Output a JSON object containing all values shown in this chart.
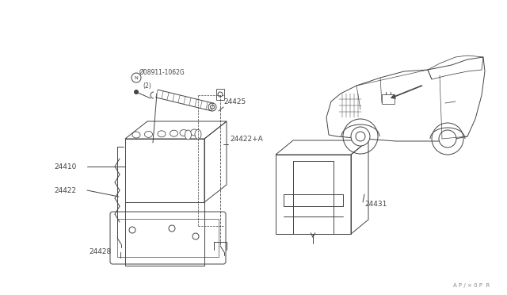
{
  "bg_color": "#ffffff",
  "line_color": "#444444",
  "fig_width": 6.4,
  "fig_height": 3.72,
  "dpi": 100,
  "labels": {
    "bolt_label": "Ø08911-1062G\n  (2)",
    "part_24410": "24410",
    "part_24422": "24422",
    "part_24425": "24425",
    "part_24422A": "24422+A",
    "part_24428": "24428",
    "part_24431": "24431",
    "watermark": "A P /  × 0 P  R"
  }
}
